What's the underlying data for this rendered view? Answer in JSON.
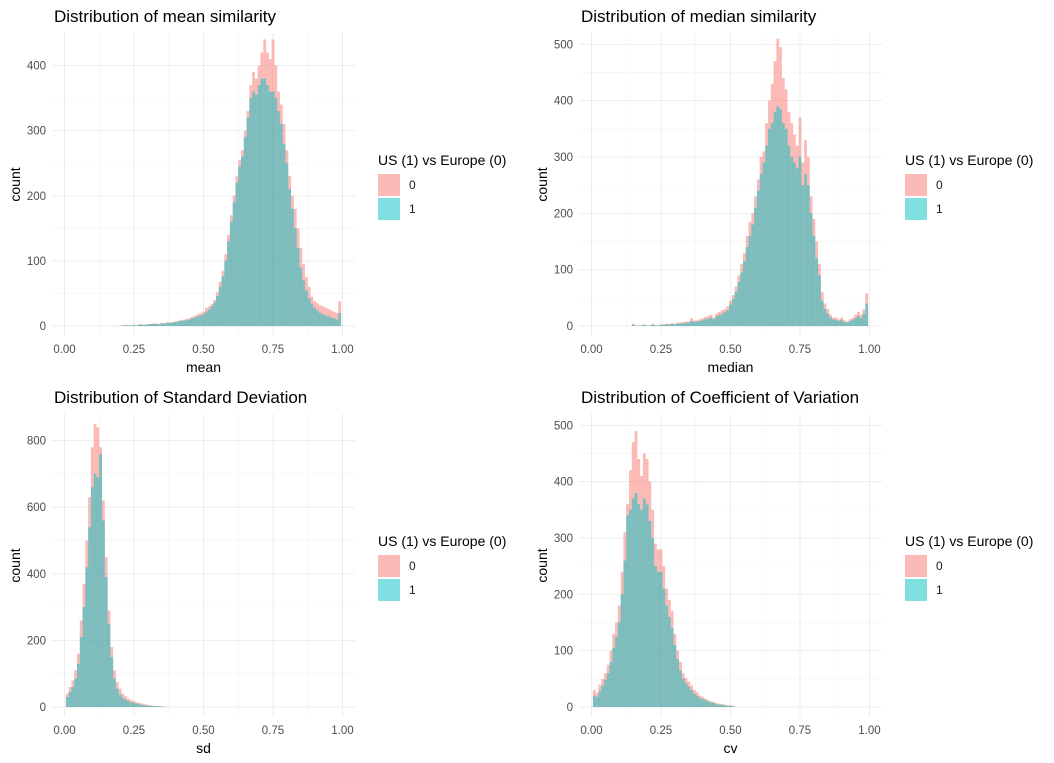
{
  "colors": {
    "group0": "#F8766D",
    "group1": "#00BFC4",
    "overlap_opacity": 0.5
  },
  "chart_data": [
    {
      "type": "histogram",
      "title": "Distribution of mean similarity",
      "xlabel": "mean",
      "ylabel": "count",
      "xlim": [
        0,
        1
      ],
      "ylim": [
        0,
        450
      ],
      "xticks": [
        "0.00",
        "0.25",
        "0.50",
        "0.75",
        "1.00"
      ],
      "xtick_values": [
        0,
        0.25,
        0.5,
        0.75,
        1
      ],
      "yticks": [
        0,
        100,
        200,
        300,
        400
      ],
      "legend": {
        "title": "US (1) vs Europe (0)",
        "entries": [
          "0",
          "1"
        ],
        "position": "right"
      },
      "bins": {
        "x": [
          0.2,
          0.21,
          0.22,
          0.23,
          0.24,
          0.25,
          0.26,
          0.27,
          0.28,
          0.29,
          0.3,
          0.31,
          0.32,
          0.33,
          0.34,
          0.35,
          0.36,
          0.37,
          0.38,
          0.39,
          0.4,
          0.41,
          0.42,
          0.43,
          0.44,
          0.45,
          0.46,
          0.47,
          0.48,
          0.49,
          0.5,
          0.51,
          0.52,
          0.53,
          0.54,
          0.55,
          0.56,
          0.57,
          0.58,
          0.59,
          0.6,
          0.61,
          0.62,
          0.63,
          0.64,
          0.65,
          0.66,
          0.67,
          0.68,
          0.69,
          0.7,
          0.71,
          0.72,
          0.73,
          0.74,
          0.75,
          0.76,
          0.77,
          0.78,
          0.79,
          0.8,
          0.81,
          0.82,
          0.83,
          0.84,
          0.85,
          0.86,
          0.87,
          0.88,
          0.89,
          0.9,
          0.91,
          0.92,
          0.93,
          0.94,
          0.95,
          0.96,
          0.97,
          0.98,
          0.99
        ],
        "width": 0.01
      },
      "series": [
        {
          "name": "0",
          "values": [
            1,
            1,
            2,
            1,
            1,
            2,
            1,
            3,
            2,
            2,
            3,
            3,
            4,
            4,
            3,
            5,
            4,
            6,
            5,
            6,
            7,
            8,
            9,
            10,
            11,
            12,
            14,
            16,
            18,
            20,
            22,
            28,
            30,
            34,
            40,
            52,
            68,
            85,
            110,
            140,
            170,
            200,
            230,
            255,
            270,
            300,
            330,
            370,
            390,
            380,
            400,
            420,
            440,
            420,
            410,
            440,
            400,
            360,
            340,
            310,
            270,
            230,
            200,
            180,
            150,
            120,
            95,
            75,
            60,
            45,
            38,
            35,
            32,
            30,
            28,
            26,
            24,
            22,
            20,
            38
          ]
        },
        {
          "name": "1",
          "values": [
            0,
            1,
            1,
            1,
            1,
            1,
            1,
            2,
            2,
            2,
            2,
            3,
            3,
            3,
            3,
            4,
            4,
            4,
            5,
            5,
            6,
            7,
            8,
            8,
            9,
            10,
            12,
            13,
            15,
            16,
            18,
            22,
            25,
            30,
            36,
            46,
            60,
            76,
            100,
            130,
            160,
            190,
            220,
            245,
            260,
            290,
            320,
            350,
            360,
            355,
            370,
            380,
            380,
            370,
            360,
            360,
            350,
            330,
            310,
            280,
            250,
            210,
            180,
            150,
            120,
            90,
            70,
            55,
            42,
            34,
            28,
            24,
            20,
            18,
            16,
            15,
            13,
            12,
            10,
            20
          ]
        }
      ]
    },
    {
      "type": "histogram",
      "title": "Distribution of median similarity",
      "xlabel": "median",
      "ylabel": "count",
      "xlim": [
        0,
        1
      ],
      "ylim": [
        0,
        520
      ],
      "xticks": [
        "0.00",
        "0.25",
        "0.50",
        "0.75",
        "1.00"
      ],
      "xtick_values": [
        0,
        0.25,
        0.5,
        0.75,
        1
      ],
      "yticks": [
        0,
        100,
        200,
        300,
        400,
        500
      ],
      "legend": {
        "title": "US (1) vs Europe (0)",
        "entries": [
          "0",
          "1"
        ],
        "position": "right"
      },
      "bins": {
        "x": [
          0.15,
          0.16,
          0.17,
          0.18,
          0.19,
          0.2,
          0.21,
          0.22,
          0.23,
          0.24,
          0.25,
          0.26,
          0.27,
          0.28,
          0.29,
          0.3,
          0.31,
          0.32,
          0.33,
          0.34,
          0.35,
          0.36,
          0.37,
          0.38,
          0.39,
          0.4,
          0.41,
          0.42,
          0.43,
          0.44,
          0.45,
          0.46,
          0.47,
          0.48,
          0.49,
          0.5,
          0.51,
          0.52,
          0.53,
          0.54,
          0.55,
          0.56,
          0.57,
          0.58,
          0.59,
          0.6,
          0.61,
          0.62,
          0.63,
          0.64,
          0.65,
          0.66,
          0.67,
          0.68,
          0.69,
          0.7,
          0.71,
          0.72,
          0.73,
          0.74,
          0.75,
          0.76,
          0.77,
          0.78,
          0.79,
          0.8,
          0.81,
          0.82,
          0.83,
          0.84,
          0.85,
          0.86,
          0.87,
          0.88,
          0.89,
          0.9,
          0.91,
          0.92,
          0.93,
          0.94,
          0.95,
          0.96,
          0.97,
          0.98,
          0.99
        ],
        "width": 0.01
      },
      "series": [
        {
          "name": "0",
          "values": [
            4,
            1,
            1,
            1,
            3,
            1,
            1,
            4,
            2,
            1,
            3,
            3,
            4,
            4,
            5,
            4,
            6,
            6,
            7,
            8,
            8,
            14,
            10,
            10,
            12,
            14,
            16,
            18,
            20,
            15,
            22,
            25,
            28,
            30,
            35,
            45,
            55,
            70,
            90,
            110,
            130,
            160,
            185,
            200,
            230,
            260,
            300,
            310,
            360,
            400,
            430,
            470,
            510,
            495,
            440,
            420,
            380,
            360,
            340,
            320,
            370,
            290,
            330,
            300,
            230,
            190,
            150,
            110,
            60,
            40,
            30,
            20,
            15,
            15,
            12,
            15,
            10,
            8,
            12,
            15,
            20,
            25,
            20,
            30,
            58
          ]
        },
        {
          "name": "1",
          "values": [
            2,
            1,
            1,
            1,
            2,
            1,
            1,
            2,
            1,
            1,
            2,
            2,
            3,
            3,
            3,
            3,
            4,
            4,
            5,
            5,
            6,
            9,
            7,
            8,
            9,
            10,
            12,
            13,
            15,
            12,
            17,
            19,
            22,
            25,
            28,
            38,
            48,
            60,
            78,
            95,
            115,
            140,
            160,
            180,
            210,
            240,
            270,
            290,
            320,
            350,
            360,
            380,
            390,
            385,
            360,
            350,
            320,
            300,
            290,
            280,
            300,
            250,
            270,
            250,
            200,
            160,
            120,
            90,
            45,
            30,
            22,
            15,
            12,
            11,
            9,
            11,
            7,
            6,
            9,
            11,
            14,
            18,
            14,
            22,
            40
          ]
        }
      ]
    },
    {
      "type": "histogram",
      "title": "Distribution of Standard Deviation",
      "xlabel": "sd",
      "ylabel": "count",
      "xlim": [
        0,
        1
      ],
      "ylim": [
        0,
        880
      ],
      "xticks": [
        "0.00",
        "0.25",
        "0.50",
        "0.75",
        "1.00"
      ],
      "xtick_values": [
        0,
        0.25,
        0.5,
        0.75,
        1
      ],
      "yticks": [
        0,
        200,
        400,
        600,
        800
      ],
      "legend": {
        "title": "US (1) vs Europe (0)",
        "entries": [
          "0",
          "1"
        ],
        "position": "right"
      },
      "bins": {
        "x": [
          0.01,
          0.02,
          0.03,
          0.04,
          0.05,
          0.06,
          0.07,
          0.08,
          0.09,
          0.1,
          0.11,
          0.12,
          0.13,
          0.14,
          0.15,
          0.16,
          0.17,
          0.18,
          0.19,
          0.2,
          0.21,
          0.22,
          0.23,
          0.24,
          0.25,
          0.26,
          0.27,
          0.28,
          0.29,
          0.3,
          0.31,
          0.32,
          0.33,
          0.34,
          0.35,
          0.36
        ],
        "width": 0.01
      },
      "series": [
        {
          "name": "0",
          "values": [
            40,
            60,
            80,
            110,
            160,
            260,
            370,
            500,
            630,
            780,
            850,
            840,
            780,
            620,
            450,
            290,
            180,
            110,
            75,
            55,
            40,
            32,
            26,
            20,
            18,
            14,
            12,
            10,
            8,
            7,
            5,
            4,
            3,
            3,
            2,
            1
          ]
        },
        {
          "name": "1",
          "values": [
            30,
            45,
            60,
            85,
            130,
            210,
            300,
            420,
            540,
            660,
            700,
            690,
            760,
            560,
            390,
            250,
            150,
            85,
            55,
            38,
            28,
            22,
            18,
            14,
            12,
            10,
            8,
            6,
            5,
            4,
            3,
            3,
            2,
            2,
            1,
            1
          ]
        }
      ]
    },
    {
      "type": "histogram",
      "title": "Distribution of Coefficient of Variation",
      "xlabel": "cv",
      "ylabel": "count",
      "xlim": [
        0,
        1
      ],
      "ylim": [
        0,
        520
      ],
      "xticks": [
        "0.00",
        "0.25",
        "0.50",
        "0.75",
        "1.00"
      ],
      "xtick_values": [
        0,
        0.25,
        0.5,
        0.75,
        1
      ],
      "yticks": [
        0,
        100,
        200,
        300,
        400,
        500
      ],
      "legend": {
        "title": "US (1) vs Europe (0)",
        "entries": [
          "0",
          "1"
        ],
        "position": "right"
      },
      "bins": {
        "x": [
          0.01,
          0.02,
          0.03,
          0.04,
          0.05,
          0.06,
          0.07,
          0.08,
          0.09,
          0.1,
          0.11,
          0.12,
          0.13,
          0.14,
          0.15,
          0.16,
          0.17,
          0.18,
          0.19,
          0.2,
          0.21,
          0.22,
          0.23,
          0.24,
          0.25,
          0.26,
          0.27,
          0.28,
          0.29,
          0.3,
          0.31,
          0.32,
          0.33,
          0.34,
          0.35,
          0.36,
          0.37,
          0.38,
          0.39,
          0.4,
          0.41,
          0.42,
          0.43,
          0.44,
          0.45,
          0.46,
          0.47,
          0.48,
          0.49,
          0.5,
          0.51
        ],
        "width": 0.01
      },
      "series": [
        {
          "name": "0",
          "values": [
            30,
            25,
            40,
            50,
            60,
            75,
            100,
            130,
            150,
            180,
            240,
            310,
            360,
            420,
            470,
            490,
            440,
            410,
            450,
            440,
            400,
            350,
            290,
            280,
            280,
            250,
            210,
            190,
            170,
            130,
            100,
            80,
            60,
            52,
            45,
            38,
            30,
            26,
            20,
            18,
            15,
            12,
            10,
            9,
            7,
            6,
            5,
            4,
            3,
            3,
            2
          ]
        },
        {
          "name": "1",
          "values": [
            20,
            18,
            28,
            38,
            48,
            60,
            80,
            105,
            125,
            150,
            200,
            260,
            340,
            350,
            370,
            380,
            360,
            350,
            370,
            360,
            330,
            300,
            250,
            240,
            240,
            210,
            180,
            160,
            140,
            110,
            85,
            65,
            50,
            42,
            36,
            30,
            24,
            20,
            16,
            14,
            12,
            10,
            8,
            7,
            5,
            4,
            4,
            3,
            2,
            2,
            1
          ]
        }
      ]
    }
  ]
}
